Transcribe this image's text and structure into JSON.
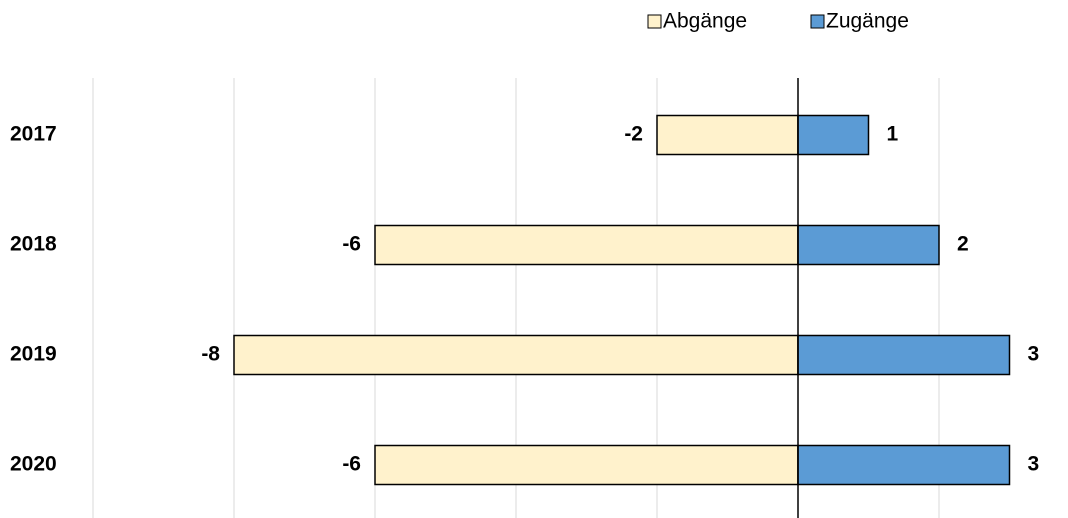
{
  "chart_data": {
    "type": "diverging_bar",
    "categories": [
      "2017",
      "2018",
      "2019",
      "2020"
    ],
    "series": [
      {
        "name": "Abgänge",
        "color": "#fff2cc",
        "values": [
          -2,
          -6,
          -8,
          -6
        ]
      },
      {
        "name": "Zugänge",
        "color": "#5b9bd5",
        "values": [
          1,
          2,
          3,
          3
        ]
      }
    ],
    "xlim": [
      -10,
      4
    ],
    "xticks": [
      -10,
      -8,
      -6,
      -4,
      -2,
      0,
      2
    ],
    "grid": true,
    "legend": "top"
  }
}
